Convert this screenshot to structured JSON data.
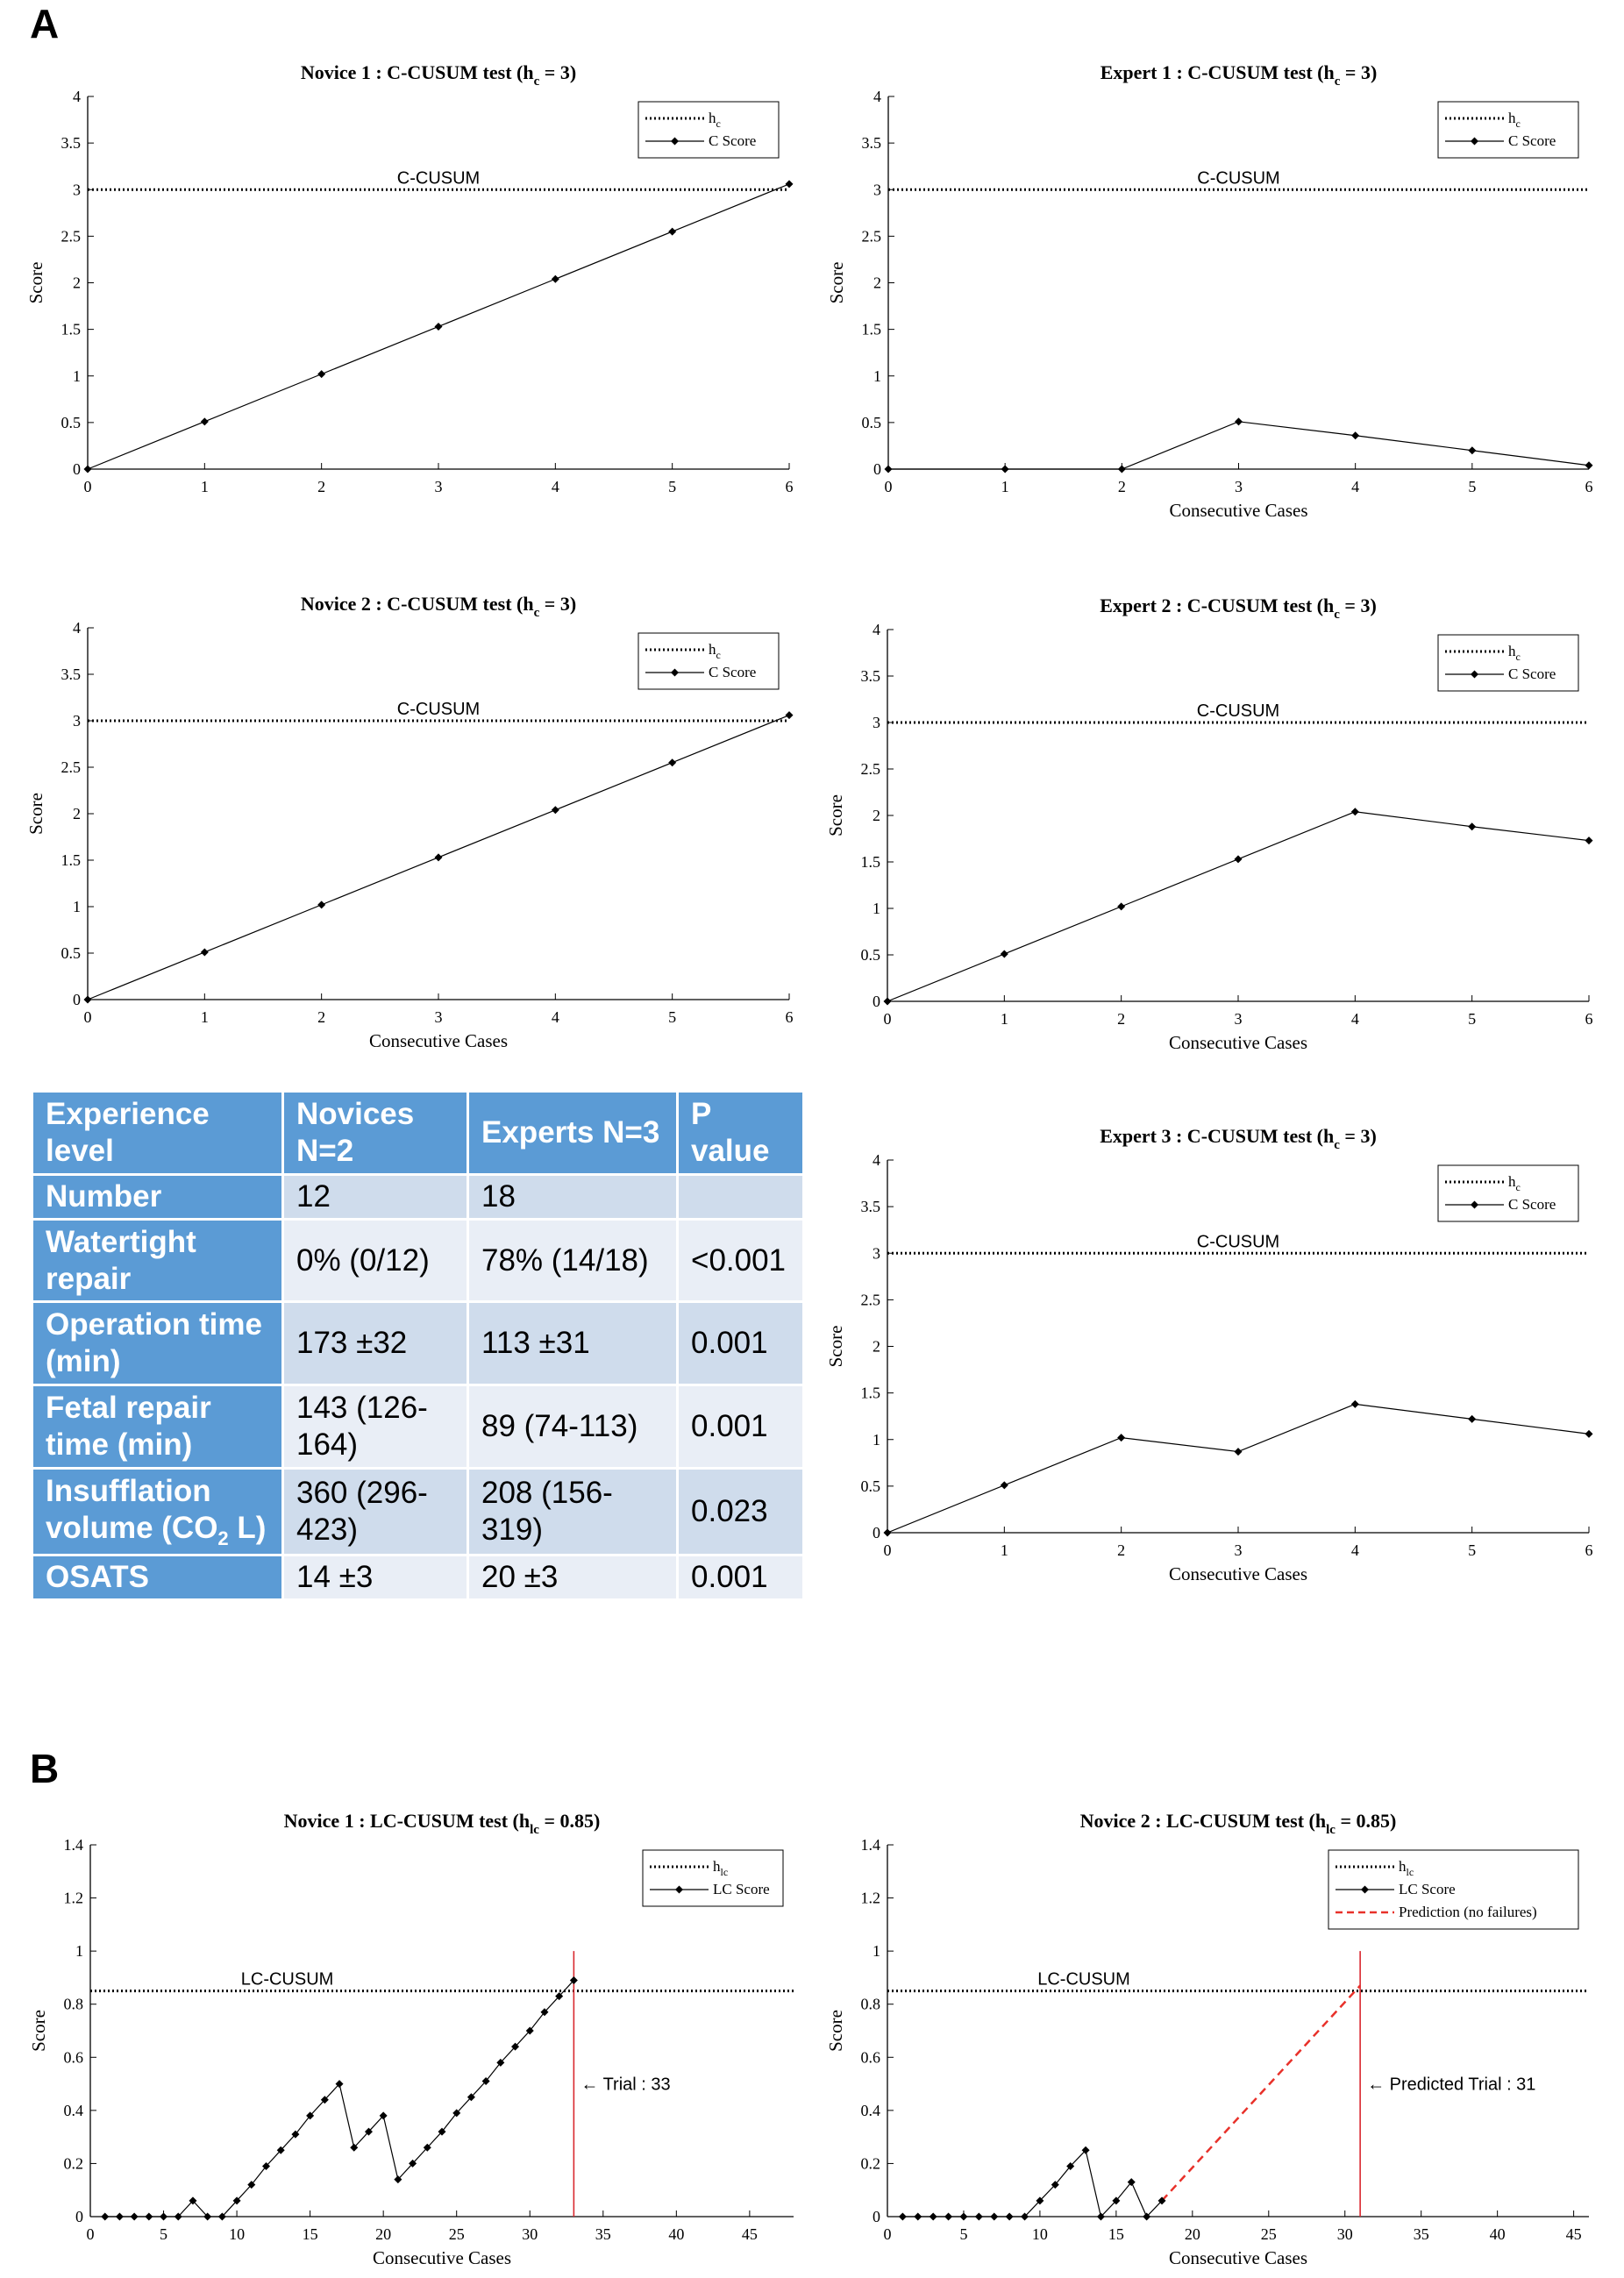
{
  "panels": {
    "a": "A",
    "b": "B"
  },
  "chart_data": [
    {
      "id": "novice1",
      "type": "line",
      "title": "Novice 1 : C-CUSUM test (h",
      "title_sub": "c",
      "title_suffix": " = 3)",
      "xlabel": "",
      "ylabel": "Score",
      "xlim": [
        0,
        6
      ],
      "ylim": [
        0,
        4
      ],
      "xticks": [
        0,
        1,
        2,
        3,
        4,
        5,
        6
      ],
      "yticks": [
        0,
        0.5,
        1,
        1.5,
        2,
        2.5,
        3,
        3.5,
        4
      ],
      "threshold": 3,
      "threshold_label": "C-CUSUM",
      "legend": [
        {
          "label": "h",
          "sub": "c",
          "style": "dotted"
        },
        {
          "label": "C Score",
          "style": "line-marker"
        }
      ],
      "series": [
        {
          "name": "C Score",
          "x": [
            0,
            1,
            2,
            3,
            4,
            5,
            6
          ],
          "y": [
            0,
            0.51,
            1.02,
            1.53,
            2.04,
            2.55,
            3.06
          ]
        }
      ]
    },
    {
      "id": "expert1",
      "type": "line",
      "title": "Expert 1 : C-CUSUM test (h",
      "title_sub": "c",
      "title_suffix": " = 3)",
      "xlabel": "Consecutive Cases",
      "ylabel": "Score",
      "xlim": [
        0,
        6
      ],
      "ylim": [
        0,
        4
      ],
      "xticks": [
        0,
        1,
        2,
        3,
        4,
        5,
        6
      ],
      "yticks": [
        0,
        0.5,
        1,
        1.5,
        2,
        2.5,
        3,
        3.5,
        4
      ],
      "threshold": 3,
      "threshold_label": "C-CUSUM",
      "legend": [
        {
          "label": "h",
          "sub": "c",
          "style": "dotted"
        },
        {
          "label": "C Score",
          "style": "line-marker"
        }
      ],
      "series": [
        {
          "name": "C Score",
          "x": [
            0,
            1,
            2,
            3,
            4,
            5,
            6
          ],
          "y": [
            0,
            0,
            0,
            0.51,
            0.36,
            0.2,
            0.04
          ]
        }
      ]
    },
    {
      "id": "novice2",
      "type": "line",
      "title": "Novice 2 : C-CUSUM test (h",
      "title_sub": "c",
      "title_suffix": " = 3)",
      "xlabel": "Consecutive Cases",
      "ylabel": "Score",
      "xlim": [
        0,
        6
      ],
      "ylim": [
        0,
        4
      ],
      "xticks": [
        0,
        1,
        2,
        3,
        4,
        5,
        6
      ],
      "yticks": [
        0,
        0.5,
        1,
        1.5,
        2,
        2.5,
        3,
        3.5,
        4
      ],
      "threshold": 3,
      "threshold_label": "C-CUSUM",
      "legend": [
        {
          "label": "h",
          "sub": "c",
          "style": "dotted"
        },
        {
          "label": "C Score",
          "style": "line-marker"
        }
      ],
      "series": [
        {
          "name": "C Score",
          "x": [
            0,
            1,
            2,
            3,
            4,
            5,
            6
          ],
          "y": [
            0,
            0.51,
            1.02,
            1.53,
            2.04,
            2.55,
            3.06
          ]
        }
      ]
    },
    {
      "id": "expert2",
      "type": "line",
      "title": "Expert 2 : C-CUSUM test (h",
      "title_sub": "c",
      "title_suffix": " = 3)",
      "xlabel": "Consecutive Cases",
      "ylabel": "Score",
      "xlim": [
        0,
        6
      ],
      "ylim": [
        0,
        4
      ],
      "xticks": [
        0,
        1,
        2,
        3,
        4,
        5,
        6
      ],
      "yticks": [
        0,
        0.5,
        1,
        1.5,
        2,
        2.5,
        3,
        3.5,
        4
      ],
      "threshold": 3,
      "threshold_label": "C-CUSUM",
      "legend": [
        {
          "label": "h",
          "sub": "c",
          "style": "dotted"
        },
        {
          "label": "C Score",
          "style": "line-marker"
        }
      ],
      "series": [
        {
          "name": "C Score",
          "x": [
            0,
            1,
            2,
            3,
            4,
            5,
            6
          ],
          "y": [
            0,
            0.51,
            1.02,
            1.53,
            2.04,
            1.88,
            1.73
          ]
        }
      ]
    },
    {
      "id": "expert3",
      "type": "line",
      "title": "Expert 3 : C-CUSUM test (h",
      "title_sub": "c",
      "title_suffix": " = 3)",
      "xlabel": "Consecutive Cases",
      "ylabel": "Score",
      "xlim": [
        0,
        6
      ],
      "ylim": [
        0,
        4
      ],
      "xticks": [
        0,
        1,
        2,
        3,
        4,
        5,
        6
      ],
      "yticks": [
        0,
        0.5,
        1,
        1.5,
        2,
        2.5,
        3,
        3.5,
        4
      ],
      "threshold": 3,
      "threshold_label": "C-CUSUM",
      "legend": [
        {
          "label": "h",
          "sub": "c",
          "style": "dotted"
        },
        {
          "label": "C Score",
          "style": "line-marker"
        }
      ],
      "series": [
        {
          "name": "C Score",
          "x": [
            0,
            1,
            2,
            3,
            4,
            5,
            6
          ],
          "y": [
            0,
            0.51,
            1.02,
            0.87,
            1.38,
            1.22,
            1.06
          ]
        }
      ]
    },
    {
      "id": "lc_novice1",
      "type": "line",
      "title": "Novice 1 : LC-CUSUM test (h",
      "title_sub": "lc",
      "title_suffix": " = 0.85)",
      "xlabel": "Consecutive Cases",
      "ylabel": "Score",
      "xlim": [
        0,
        48
      ],
      "ylim": [
        0,
        1.4
      ],
      "xticks": [
        0,
        5,
        10,
        15,
        20,
        25,
        30,
        35,
        40,
        45
      ],
      "yticks": [
        0,
        0.2,
        0.4,
        0.6,
        0.8,
        1,
        1.2,
        1.4
      ],
      "threshold": 0.85,
      "threshold_label": "LC-CUSUM",
      "legend": [
        {
          "label": "h",
          "sub": "lc",
          "style": "dotted"
        },
        {
          "label": "LC Score",
          "style": "line-marker"
        }
      ],
      "vline": {
        "x": 33,
        "label": "Trial : 33"
      },
      "series": [
        {
          "name": "LC Score",
          "x": [
            1,
            2,
            3,
            4,
            5,
            6,
            7,
            8,
            9,
            10,
            11,
            12,
            13,
            14,
            15,
            16,
            17,
            18,
            19,
            20,
            21,
            22,
            23,
            24,
            25,
            26,
            27,
            28,
            29,
            30,
            31,
            32,
            33
          ],
          "y": [
            0,
            0,
            0,
            0,
            0,
            0,
            0.06,
            0,
            0,
            0.06,
            0.12,
            0.19,
            0.25,
            0.31,
            0.38,
            0.44,
            0.5,
            0.26,
            0.32,
            0.38,
            0.14,
            0.2,
            0.26,
            0.32,
            0.39,
            0.45,
            0.51,
            0.58,
            0.64,
            0.7,
            0.77,
            0.83,
            0.89
          ]
        }
      ]
    },
    {
      "id": "lc_novice2",
      "type": "line",
      "title": "Novice 2 : LC-CUSUM test (h",
      "title_sub": "lc",
      "title_suffix": " = 0.85)",
      "xlabel": "Consecutive Cases",
      "ylabel": "Score",
      "xlim": [
        0,
        46
      ],
      "ylim": [
        0,
        1.4
      ],
      "xticks": [
        0,
        5,
        10,
        15,
        20,
        25,
        30,
        35,
        40,
        45
      ],
      "yticks": [
        0,
        0.2,
        0.4,
        0.6,
        0.8,
        1,
        1.2,
        1.4
      ],
      "threshold": 0.85,
      "threshold_label": "LC-CUSUM",
      "legend": [
        {
          "label": "h",
          "sub": "lc",
          "style": "dotted"
        },
        {
          "label": "LC Score",
          "style": "line-marker"
        },
        {
          "label": "Prediction (no failures)",
          "style": "dashed-red"
        }
      ],
      "vline": {
        "x": 31,
        "label": "Predicted Trial : 31"
      },
      "prediction": {
        "x": [
          18,
          31
        ],
        "y": [
          0.06,
          0.87
        ]
      },
      "series": [
        {
          "name": "LC Score",
          "x": [
            1,
            2,
            3,
            4,
            5,
            6,
            7,
            8,
            9,
            10,
            11,
            12,
            13,
            14,
            15,
            16,
            17,
            18
          ],
          "y": [
            0,
            0,
            0,
            0,
            0,
            0,
            0,
            0,
            0,
            0.06,
            0.12,
            0.19,
            0.25,
            0,
            0.06,
            0.13,
            0,
            0.06
          ]
        }
      ]
    }
  ],
  "table": {
    "headers": [
      "Experience level",
      "Novices N=2",
      "Experts N=3",
      "P value"
    ],
    "rows": [
      {
        "label": "Number",
        "novices": "12",
        "experts": "18",
        "p": ""
      },
      {
        "label": "Watertight repair",
        "novices": "0% (0/12)",
        "experts": "78% (14/18)",
        "p": "<0.001"
      },
      {
        "label": "Operation time (min)",
        "novices": "173 ±32",
        "experts": "113 ±31",
        "p": "0.001"
      },
      {
        "label": "Fetal repair time (min)",
        "novices": "143 (126-164)",
        "experts": "89 (74-113)",
        "p": "0.001"
      },
      {
        "label": "Insufflation volume (CO2 L)",
        "novices": "360 (296-423)",
        "experts": "208 (156-319)",
        "p": "0.023"
      },
      {
        "label": "OSATS",
        "novices": "14 ±3",
        "experts": "20 ±3",
        "p": "0.001"
      }
    ]
  }
}
